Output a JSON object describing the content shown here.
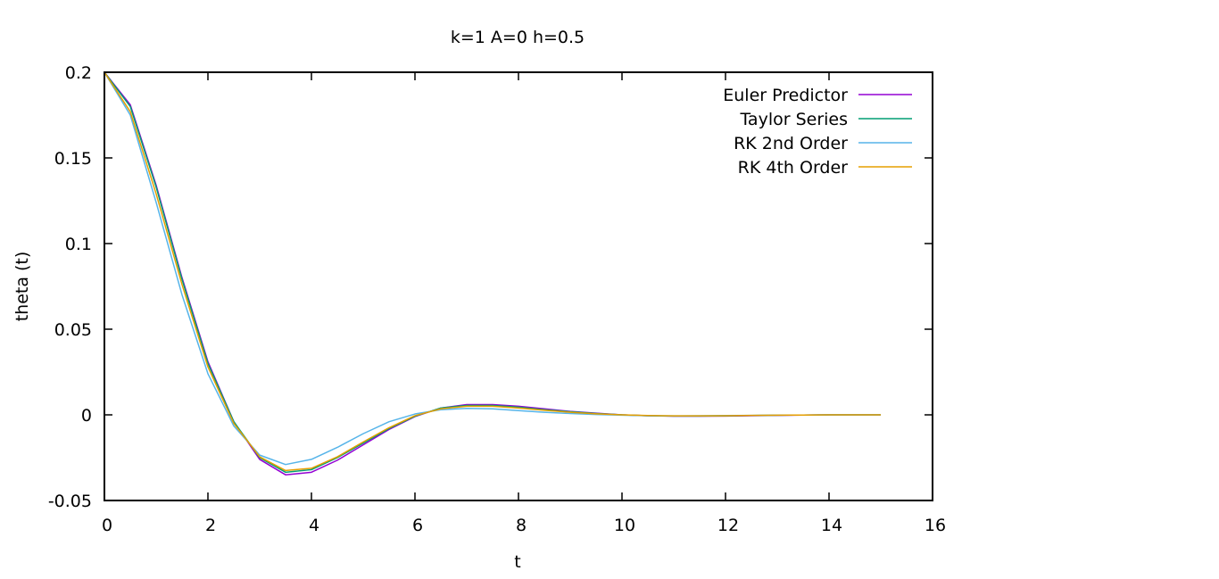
{
  "chart_data": {
    "type": "line",
    "title": "k=1 A=0 h=0.5",
    "xlabel": "t",
    "ylabel": "theta (t)",
    "xlim": [
      0,
      16
    ],
    "ylim": [
      -0.05,
      0.2
    ],
    "xticks": [
      0,
      2,
      4,
      6,
      8,
      10,
      12,
      14,
      16
    ],
    "yticks": [
      -0.05,
      0,
      0.05,
      0.1,
      0.15,
      0.2
    ],
    "xtick_labels": [
      "0",
      "2",
      "4",
      "6",
      "8",
      "10",
      "12",
      "14",
      "16"
    ],
    "ytick_labels": [
      "-0.05",
      "0",
      "0.05",
      "0.1",
      "0.15",
      "0.2"
    ],
    "grid": false,
    "legend_position": "top-right",
    "x": [
      0,
      0.5,
      1,
      1.5,
      2,
      2.5,
      3,
      3.5,
      4,
      4.5,
      5,
      5.5,
      6,
      6.5,
      7,
      7.5,
      8,
      8.5,
      9,
      9.5,
      10,
      10.5,
      11,
      11.5,
      12,
      12.5,
      13,
      13.5,
      14,
      14.5,
      15
    ],
    "series": [
      {
        "name": "Euler Predictor",
        "color": "#9400d3",
        "values": [
          0.2,
          0.181,
          0.134,
          0.08,
          0.031,
          -0.004,
          -0.026,
          -0.035,
          -0.0335,
          -0.0265,
          -0.0175,
          -0.0085,
          -0.001,
          0.004,
          0.006,
          0.006,
          0.005,
          0.0035,
          0.002,
          0.001,
          0.0,
          -0.0005,
          -0.0008,
          -0.0008,
          -0.0007,
          -0.0005,
          -0.0003,
          -0.0001,
          0.0,
          0.0,
          0.0
        ]
      },
      {
        "name": "Taylor Series",
        "color": "#009e73",
        "values": [
          0.2,
          0.18,
          0.133,
          0.079,
          0.03,
          -0.004,
          -0.025,
          -0.0335,
          -0.032,
          -0.025,
          -0.0165,
          -0.008,
          -0.0008,
          0.004,
          0.0055,
          0.0055,
          0.0045,
          0.003,
          0.0018,
          0.0008,
          0.0,
          -0.0005,
          -0.0007,
          -0.0007,
          -0.0006,
          -0.0004,
          -0.0002,
          -0.0001,
          0.0,
          0.0,
          0.0
        ]
      },
      {
        "name": "RK 2nd Order",
        "color": "#56b4e9",
        "values": [
          0.2,
          0.175,
          0.124,
          0.07,
          0.024,
          -0.0065,
          -0.0235,
          -0.029,
          -0.026,
          -0.019,
          -0.011,
          -0.004,
          0.0005,
          0.003,
          0.0038,
          0.0035,
          0.0025,
          0.0015,
          0.0008,
          0.0002,
          -0.0002,
          -0.0005,
          -0.0006,
          -0.0005,
          -0.0004,
          -0.0003,
          -0.0002,
          -0.0001,
          0.0,
          0.0,
          0.0
        ]
      },
      {
        "name": "RK 4th Order",
        "color": "#e69f00",
        "values": [
          0.2,
          0.177,
          0.129,
          0.076,
          0.028,
          -0.005,
          -0.0245,
          -0.0325,
          -0.0312,
          -0.0245,
          -0.0158,
          -0.0075,
          -0.0005,
          0.0035,
          0.005,
          0.005,
          0.004,
          0.0027,
          0.0015,
          0.0006,
          0.0,
          -0.0004,
          -0.0006,
          -0.0006,
          -0.0005,
          -0.0003,
          -0.0002,
          -0.0001,
          0.0,
          0.0,
          0.0
        ]
      }
    ]
  }
}
